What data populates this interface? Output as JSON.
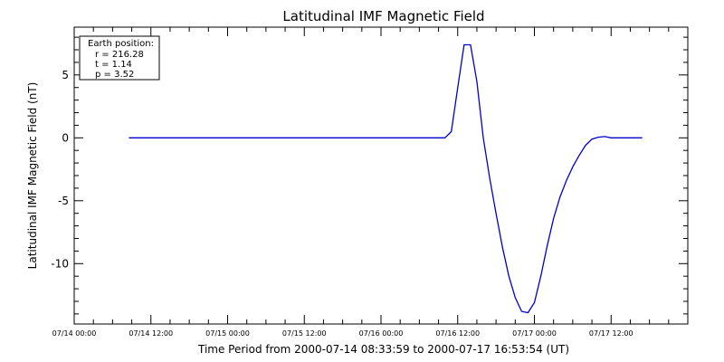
{
  "chart_data": {
    "type": "line",
    "title": "Latitudinal IMF Magnetic Field",
    "xlabel": "Time Period from 2000-07-14 08:33:59 to 2000-07-17 16:53:54 (UT)",
    "ylabel": "Latitudinal IMF Magnetic Field (nT)",
    "xlim": [
      "2000-07-14 00:00",
      "2000-07-18 00:00"
    ],
    "ylim": [
      -14.8,
      8.8
    ],
    "x_ticks": [
      {
        "label": "07/14 00:00",
        "t": "2000-07-14 00:00"
      },
      {
        "label": "07/14 12:00",
        "t": "2000-07-14 12:00"
      },
      {
        "label": "07/15 00:00",
        "t": "2000-07-15 00:00"
      },
      {
        "label": "07/15 12:00",
        "t": "2000-07-15 12:00"
      },
      {
        "label": "07/16 00:00",
        "t": "2000-07-16 00:00"
      },
      {
        "label": "07/16 12:00",
        "t": "2000-07-16 12:00"
      },
      {
        "label": "07/17 00:00",
        "t": "2000-07-17 00:00"
      },
      {
        "label": "07/17 12:00",
        "t": "2000-07-17 12:00"
      }
    ],
    "y_ticks": [
      {
        "label": "5",
        "v": 5
      },
      {
        "label": "0",
        "v": 0
      },
      {
        "label": "-5",
        "v": -5
      },
      {
        "label": "-10",
        "v": -10
      }
    ],
    "legend": {
      "placement": "top-left",
      "lines": [
        "Earth position:",
        "r = 216.28",
        "t = 1.14",
        "p = 3.52"
      ]
    },
    "series": [
      {
        "color": "#0000cc",
        "points": [
          {
            "t": "2000-07-14 08:33",
            "v": 0.0
          },
          {
            "t": "2000-07-15 12:00",
            "v": 0.0
          },
          {
            "t": "2000-07-16 08:00",
            "v": 0.0
          },
          {
            "t": "2000-07-16 10:00",
            "v": 0.0
          },
          {
            "t": "2000-07-16 11:00",
            "v": 0.5
          },
          {
            "t": "2000-07-16 12:00",
            "v": 4.0
          },
          {
            "t": "2000-07-16 13:00",
            "v": 7.4
          },
          {
            "t": "2000-07-16 14:00",
            "v": 7.4
          },
          {
            "t": "2000-07-16 15:00",
            "v": 4.5
          },
          {
            "t": "2000-07-16 16:00",
            "v": 0.0
          },
          {
            "t": "2000-07-16 17:00",
            "v": -3.2
          },
          {
            "t": "2000-07-16 18:00",
            "v": -6.0
          },
          {
            "t": "2000-07-16 19:00",
            "v": -8.7
          },
          {
            "t": "2000-07-16 20:00",
            "v": -11.0
          },
          {
            "t": "2000-07-16 21:00",
            "v": -12.7
          },
          {
            "t": "2000-07-16 22:00",
            "v": -13.8
          },
          {
            "t": "2000-07-16 23:00",
            "v": -13.9
          },
          {
            "t": "2000-07-17 00:00",
            "v": -13.1
          },
          {
            "t": "2000-07-17 01:00",
            "v": -11.0
          },
          {
            "t": "2000-07-17 02:00",
            "v": -8.6
          },
          {
            "t": "2000-07-17 03:00",
            "v": -6.4
          },
          {
            "t": "2000-07-17 04:00",
            "v": -4.7
          },
          {
            "t": "2000-07-17 05:00",
            "v": -3.4
          },
          {
            "t": "2000-07-17 06:00",
            "v": -2.3
          },
          {
            "t": "2000-07-17 07:00",
            "v": -1.4
          },
          {
            "t": "2000-07-17 08:00",
            "v": -0.6
          },
          {
            "t": "2000-07-17 09:00",
            "v": -0.1
          },
          {
            "t": "2000-07-17 10:00",
            "v": 0.05
          },
          {
            "t": "2000-07-17 11:00",
            "v": 0.1
          },
          {
            "t": "2000-07-17 12:00",
            "v": 0.0
          },
          {
            "t": "2000-07-17 16:53",
            "v": 0.0
          }
        ]
      }
    ]
  }
}
